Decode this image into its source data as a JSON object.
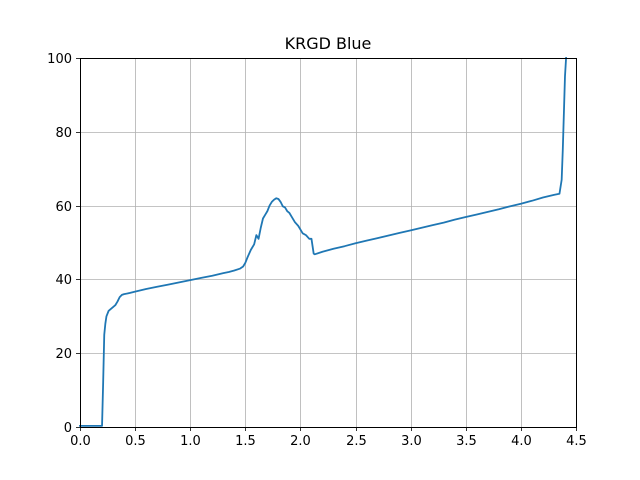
{
  "chart_data": {
    "type": "line",
    "title": "KRGD Blue",
    "xlabel": "",
    "ylabel": "",
    "xlim": [
      0,
      4.5
    ],
    "ylim": [
      0,
      100
    ],
    "x_ticks": [
      "0.0",
      "0.5",
      "1.0",
      "1.5",
      "2.0",
      "2.5",
      "3.0",
      "3.5",
      "4.0",
      "4.5"
    ],
    "y_ticks": [
      "0",
      "20",
      "40",
      "60",
      "80",
      "100"
    ],
    "grid": true,
    "legend": "none",
    "series": [
      {
        "color": "#1f77b4",
        "x": [
          0.0,
          0.1,
          0.2,
          0.21,
          0.22,
          0.23,
          0.24,
          0.26,
          0.28,
          0.3,
          0.32,
          0.34,
          0.36,
          0.38,
          0.4,
          0.45,
          0.5,
          0.6,
          0.7,
          0.8,
          0.9,
          1.0,
          1.1,
          1.2,
          1.3,
          1.35,
          1.4,
          1.45,
          1.48,
          1.5,
          1.52,
          1.55,
          1.58,
          1.6,
          1.62,
          1.64,
          1.66,
          1.68,
          1.7,
          1.72,
          1.74,
          1.76,
          1.78,
          1.8,
          1.82,
          1.84,
          1.86,
          1.88,
          1.9,
          1.92,
          1.95,
          1.98,
          2.0,
          2.02,
          2.05,
          2.08,
          2.1,
          2.12,
          2.13,
          2.2,
          2.3,
          2.4,
          2.5,
          2.6,
          2.7,
          2.8,
          2.9,
          3.0,
          3.1,
          3.2,
          3.3,
          3.4,
          3.5,
          3.6,
          3.7,
          3.8,
          3.9,
          4.0,
          4.1,
          4.2,
          4.3,
          4.35,
          4.37,
          4.38,
          4.39,
          4.4,
          4.41
        ],
        "y": [
          0.3,
          0.3,
          0.3,
          12,
          25,
          28,
          30,
          31.5,
          32,
          32.5,
          33,
          34,
          35.2,
          35.8,
          36,
          36.3,
          36.7,
          37.4,
          38.0,
          38.6,
          39.2,
          39.8,
          40.4,
          41.0,
          41.7,
          42.0,
          42.4,
          42.9,
          43.5,
          44.5,
          46,
          48,
          49.5,
          52,
          51,
          54,
          56.5,
          57.5,
          58.5,
          60,
          61,
          61.6,
          62,
          61.8,
          61,
          59.8,
          59.5,
          58.5,
          58,
          57,
          55.5,
          54.5,
          53.5,
          52.5,
          52,
          51,
          51,
          47,
          46.8,
          47.5,
          48.3,
          49.0,
          49.8,
          50.5,
          51.2,
          51.9,
          52.6,
          53.3,
          54.0,
          54.7,
          55.4,
          56.2,
          56.9,
          57.6,
          58.3,
          59.0,
          59.8,
          60.5,
          61.3,
          62.2,
          62.9,
          63.2,
          67,
          75,
          85,
          95,
          100
        ]
      }
    ]
  }
}
